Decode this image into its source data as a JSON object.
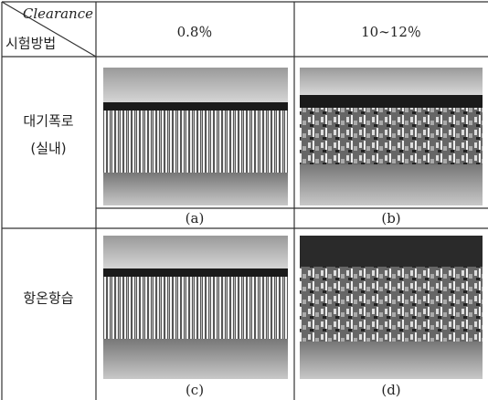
{
  "table": {
    "corner": {
      "top": "Clearance",
      "bottom": "시험방법"
    },
    "columns": [
      "0.8％",
      "10∼12％"
    ],
    "rows": [
      {
        "label": [
          "대기폭로",
          "(실내)"
        ],
        "captions": [
          "(a)",
          "(b)"
        ]
      },
      {
        "label": [
          "항온항습"
        ],
        "captions": [
          "(c)",
          "(d)"
        ]
      }
    ]
  }
}
